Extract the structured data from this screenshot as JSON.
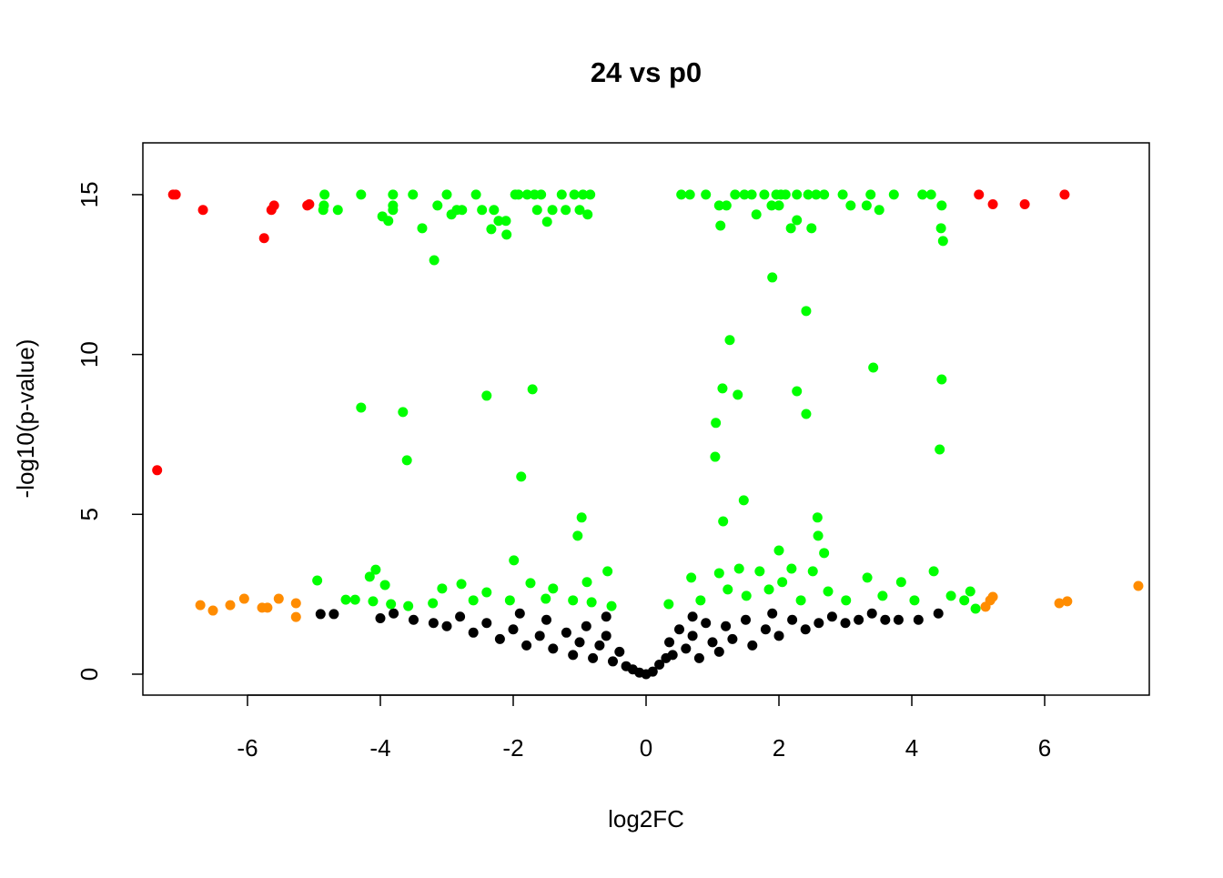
{
  "chart_data": {
    "type": "scatter",
    "title": "24 vs p0",
    "x_label": "log2FC",
    "y_label": "-log10(p-value)",
    "xlim": [
      -7.575,
      7.575
    ],
    "ylim": [
      -0.655,
      16.62
    ],
    "xticks": [
      -6,
      -4,
      -2,
      0,
      2,
      4,
      6
    ],
    "yticks": [
      0,
      5,
      10,
      15
    ],
    "series": [
      {
        "color": "#000000",
        "x": [
          -4.9,
          -4.7,
          -4.0,
          -3.8,
          -3.5,
          -3.2,
          -3.0,
          -2.8,
          -2.6,
          -2.4,
          -2.2,
          -2.0,
          -1.8,
          -1.6,
          -1.5,
          -1.4,
          -1.2,
          -1.1,
          -1.0,
          -0.9,
          -0.8,
          -0.7,
          -0.6,
          -0.5,
          -0.4,
          -0.3,
          -0.2,
          -0.1,
          0,
          0.1,
          0.2,
          0.3,
          0.35,
          0.4,
          0.5,
          0.6,
          0.7,
          0.8,
          0.9,
          1.0,
          1.1,
          1.2,
          1.3,
          1.5,
          1.6,
          1.8,
          2.0,
          2.2,
          2.4,
          2.6,
          2.8,
          3.0,
          3.2,
          3.4,
          3.6,
          3.8,
          4.1,
          4.4,
          -1.9,
          -0.6,
          0.7,
          1.9
        ],
        "values": [
          1.88,
          1.88,
          1.75,
          1.9,
          1.7,
          1.6,
          1.5,
          1.8,
          1.3,
          1.6,
          1.1,
          1.4,
          0.9,
          1.2,
          1.7,
          0.8,
          1.3,
          0.6,
          1.0,
          1.5,
          0.5,
          0.9,
          1.2,
          0.4,
          0.7,
          0.25,
          0.15,
          0.05,
          0,
          0.08,
          0.3,
          0.5,
          1.0,
          0.6,
          1.4,
          0.8,
          1.2,
          0.5,
          1.6,
          1.0,
          0.7,
          1.5,
          1.1,
          1.7,
          0.9,
          1.4,
          1.2,
          1.7,
          1.4,
          1.6,
          1.8,
          1.6,
          1.7,
          1.9,
          1.7,
          1.7,
          1.7,
          1.9,
          1.9,
          1.8,
          1.8,
          1.9
        ]
      },
      {
        "color": "#00ff00",
        "x": [
          -4.84,
          -4.85,
          -4.86,
          -4.64,
          -4.29,
          -3.97,
          -3.88,
          -3.81,
          -3.81,
          -3.81,
          -3.51,
          -3.37,
          -3.19,
          -3.14,
          -3.0,
          -2.93,
          -2.85,
          -2.77,
          -2.56,
          -2.47,
          -2.33,
          -2.29,
          -2.22,
          -2.11,
          -2.1,
          -1.97,
          -1.92,
          -1.79,
          -1.68,
          -1.58,
          -1.64,
          -1.49,
          -1.41,
          -1.27,
          -1.21,
          -1.08,
          -1.0,
          -0.95,
          -0.88,
          -0.84,
          0.53,
          0.66,
          0.9,
          1.1,
          1.12,
          1.21,
          1.34,
          1.48,
          1.59,
          1.66,
          1.78,
          1.89,
          1.96,
          2.0,
          2.03,
          2.1,
          2.18,
          2.27,
          2.27,
          2.44,
          2.49,
          2.56,
          2.68,
          2.96,
          3.08,
          3.32,
          3.38,
          3.51,
          3.73,
          4.16,
          4.29,
          4.45,
          4.44,
          4.47,
          1.9,
          2.41,
          1.26,
          3.42,
          4.45,
          -4.29,
          -2.4,
          -1.71,
          1.15,
          1.38,
          2.27,
          2.41,
          -3.66,
          1.05,
          4.42,
          1.04,
          -3.6,
          -1.88,
          1.47,
          -0.97,
          2.58,
          1.16,
          -1.03,
          2.59,
          2.68,
          2.0,
          -1.99,
          -0.58,
          -4.07,
          -4.95,
          -4.16,
          -3.93,
          -4.52,
          -4.38,
          -4.11,
          -3.84,
          -3.58,
          -3.21,
          -3.07,
          -2.78,
          -2.6,
          -2.4,
          -2.05,
          -1.74,
          -1.51,
          -1.4,
          -1.1,
          -0.82,
          -0.52,
          -0.89,
          0.34,
          0.68,
          0.82,
          1.1,
          1.23,
          1.4,
          1.51,
          1.71,
          1.85,
          2.05,
          2.19,
          2.33,
          2.51,
          2.74,
          3.01,
          3.33,
          3.56,
          3.84,
          4.04,
          4.33,
          4.59,
          4.88,
          4.96,
          4.79
        ],
        "values": [
          15,
          14.66,
          14.52,
          14.52,
          15,
          14.32,
          14.18,
          15,
          14.66,
          14.52,
          15,
          13.95,
          12.95,
          14.66,
          15,
          14.38,
          14.52,
          14.52,
          15,
          14.52,
          13.92,
          14.52,
          14.18,
          14.18,
          13.75,
          15,
          15,
          15,
          15,
          15,
          14.52,
          14.15,
          14.52,
          15,
          14.52,
          15,
          14.52,
          15,
          14.38,
          15,
          15,
          15,
          15,
          14.66,
          14.03,
          14.66,
          15,
          15,
          15,
          14.38,
          15,
          14.66,
          15,
          14.66,
          15,
          15,
          13.95,
          14.2,
          15,
          15,
          13.95,
          15,
          15,
          15,
          14.66,
          14.66,
          15,
          14.52,
          15,
          15,
          15,
          14.66,
          13.95,
          13.55,
          12.41,
          11.36,
          10.45,
          9.59,
          9.22,
          8.34,
          8.71,
          8.91,
          8.94,
          8.74,
          8.85,
          8.14,
          8.2,
          7.86,
          7.03,
          6.8,
          6.69,
          6.18,
          5.44,
          4.9,
          4.9,
          4.78,
          4.33,
          4.33,
          3.79,
          3.87,
          3.56,
          3.22,
          3.27,
          2.93,
          3.05,
          2.79,
          2.33,
          2.33,
          2.28,
          2.19,
          2.13,
          2.22,
          2.68,
          2.82,
          2.31,
          2.56,
          2.31,
          2.85,
          2.36,
          2.68,
          2.31,
          2.25,
          2.13,
          2.88,
          2.19,
          3.02,
          2.31,
          3.16,
          2.65,
          3.3,
          2.45,
          3.22,
          2.65,
          2.88,
          3.3,
          2.31,
          3.22,
          2.59,
          2.31,
          3.02,
          2.45,
          2.88,
          2.31,
          3.22,
          2.45,
          2.59,
          2.05,
          2.31
        ]
      },
      {
        "color": "#ff8c00",
        "x": [
          -6.71,
          -6.52,
          -6.26,
          -6.05,
          -5.78,
          -5.7,
          -5.53,
          -5.27,
          -5.27,
          5.11,
          5.18,
          5.22,
          6.22,
          6.34,
          7.41
        ],
        "values": [
          2.16,
          1.99,
          2.16,
          2.36,
          2.08,
          2.08,
          2.36,
          2.22,
          1.79,
          2.11,
          2.31,
          2.42,
          2.22,
          2.28,
          2.76
        ]
      },
      {
        "color": "#ff0000",
        "x": [
          -7.12,
          -7.08,
          -6.67,
          -5.75,
          -5.64,
          -5.6,
          -5.1,
          -5.07,
          -7.36,
          5.01,
          5.22,
          5.7,
          6.3
        ],
        "values": [
          15,
          15,
          14.52,
          13.64,
          14.52,
          14.66,
          14.66,
          14.7,
          6.38,
          15,
          14.7,
          14.7,
          15
        ]
      }
    ]
  }
}
